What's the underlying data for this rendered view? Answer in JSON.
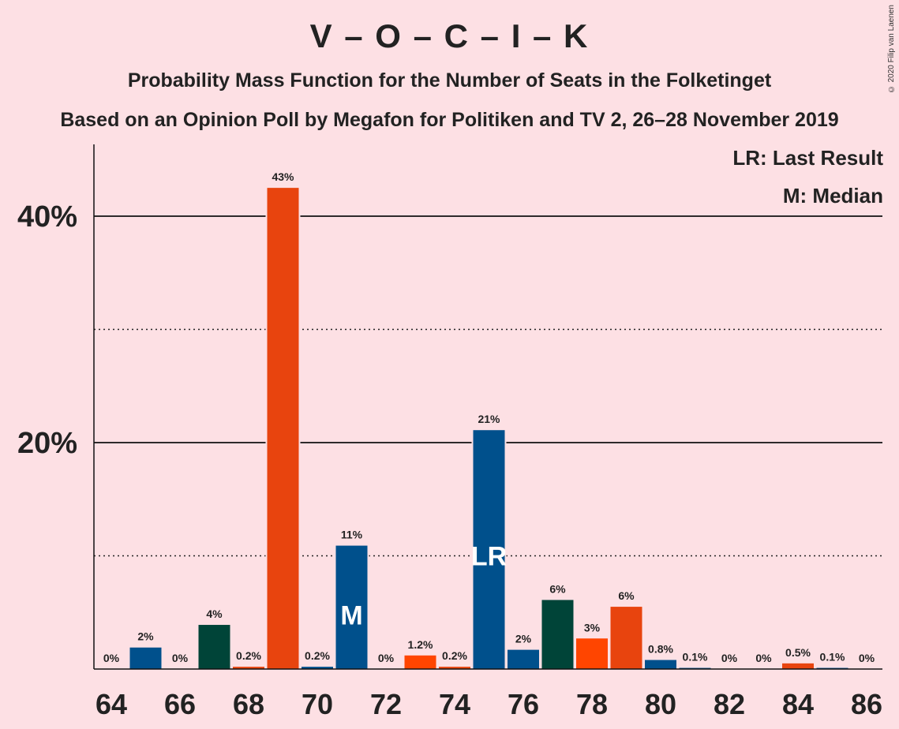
{
  "title": "V – O – C – I – K",
  "subtitle1": "Probability Mass Function for the Number of Seats in the Folketinget",
  "subtitle2": "Based on an Opinion Poll by Megafon for Politiken and TV 2, 26–28 November 2019",
  "copyright": "© 2020 Filip van Laenen",
  "legend": {
    "last_result": "LR: Last Result",
    "median": "M: Median"
  },
  "colors": {
    "background": "#fde0e4",
    "blue": "#00508c",
    "orange": "#e8440e",
    "green": "#004438",
    "red_orange": "#ff4500"
  },
  "chart_data": {
    "type": "bar",
    "x": [
      64,
      65,
      66,
      67,
      68,
      69,
      70,
      71,
      72,
      73,
      74,
      75,
      76,
      77,
      78,
      79,
      80,
      81,
      82,
      83,
      84,
      85,
      86
    ],
    "values": [
      0,
      2,
      0,
      4,
      0.2,
      43,
      0.2,
      11,
      0,
      1.2,
      0.2,
      21,
      2,
      6,
      3,
      6,
      0.8,
      0.1,
      0,
      0,
      0.5,
      0.1,
      0
    ],
    "plot_values": [
      0.0,
      1.9,
      0.0,
      3.9,
      0.2,
      42.5,
      0.2,
      10.9,
      0.0,
      1.2,
      0.2,
      21.1,
      1.7,
      6.1,
      2.7,
      5.5,
      0.8,
      0.1,
      0.0,
      0.0,
      0.5,
      0.1,
      0.0
    ],
    "labels": [
      "0%",
      "2%",
      "0%",
      "4%",
      "0.2%",
      "43%",
      "0.2%",
      "11%",
      "0%",
      "1.2%",
      "0.2%",
      "21%",
      "2%",
      "6%",
      "3%",
      "6%",
      "0.8%",
      "0.1%",
      "0%",
      "0%",
      "0.5%",
      "0.1%",
      "0%"
    ],
    "bar_colors": [
      "blue",
      "blue",
      "blue",
      "green",
      "orange",
      "orange",
      "blue",
      "blue",
      "blue",
      "red_orange",
      "orange",
      "blue",
      "blue",
      "green",
      "red_orange",
      "orange",
      "blue",
      "blue",
      "blue",
      "blue",
      "orange",
      "blue",
      "blue"
    ],
    "x_tick_labels": [
      "64",
      "66",
      "68",
      "70",
      "72",
      "74",
      "76",
      "78",
      "80",
      "82",
      "84",
      "86"
    ],
    "y_tick_labels": [
      "20%",
      "40%"
    ],
    "ylim": [
      0,
      46
    ],
    "major_gridlines": [
      20,
      40
    ],
    "minor_gridlines": [
      10,
      30
    ],
    "median_seat": 71,
    "median_marker": "M",
    "last_result_seat": 75,
    "last_result_marker": "LR"
  }
}
